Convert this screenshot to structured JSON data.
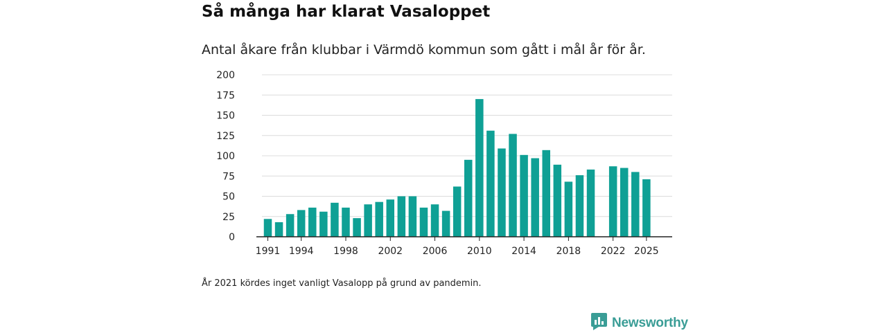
{
  "header": {
    "title": "Så många har klarat Vasaloppet",
    "subtitle": "Antal åkare från klubbar i Värmdö kommun som gått i mål år för år."
  },
  "chart_data": {
    "type": "bar",
    "title": "Så många har klarat Vasaloppet",
    "subtitle": "Antal åkare från klubbar i Värmdö kommun som gått i mål år för år.",
    "xlabel": "",
    "ylabel": "",
    "ylim": [
      0,
      200
    ],
    "yticks": [
      0,
      25,
      50,
      75,
      100,
      125,
      150,
      175,
      200
    ],
    "xtick_labels": [
      "1991",
      "1994",
      "1998",
      "2002",
      "2006",
      "2010",
      "2014",
      "2018",
      "2022",
      "2025"
    ],
    "grid": true,
    "color": "#0fa095",
    "categories": [
      "1991",
      "1992",
      "1993",
      "1994",
      "1995",
      "1996",
      "1997",
      "1998",
      "1999",
      "2000",
      "2001",
      "2002",
      "2003",
      "2004",
      "2005",
      "2006",
      "2007",
      "2008",
      "2009",
      "2010",
      "2011",
      "2012",
      "2013",
      "2014",
      "2015",
      "2016",
      "2017",
      "2018",
      "2019",
      "2020",
      "2021",
      "2022",
      "2023",
      "2024",
      "2025"
    ],
    "values": [
      22,
      18,
      28,
      33,
      36,
      31,
      42,
      36,
      23,
      40,
      43,
      46,
      50,
      50,
      36,
      40,
      32,
      62,
      95,
      170,
      131,
      109,
      127,
      101,
      97,
      107,
      89,
      68,
      76,
      83,
      null,
      87,
      85,
      80,
      71
    ]
  },
  "footnote": "År 2021 kördes inget vanligt Vasalopp på grund av pandemin.",
  "brand": {
    "name": "Newsworthy",
    "color": "#3a9d96"
  }
}
